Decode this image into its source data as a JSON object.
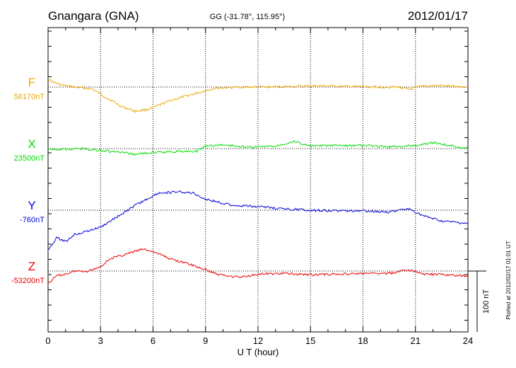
{
  "header": {
    "station": "Gnangara (GNA)",
    "coords": "GG (-31.78°, 115.95°)",
    "date": "2012/01/17"
  },
  "footer_note": "Plotted at 2012/02/17 01:01  UT",
  "scale_label": "100 nT",
  "chart_data": {
    "type": "line",
    "xlabel": "U T (hour)",
    "xlim": [
      0,
      24
    ],
    "xticks": [
      "0",
      "3",
      "6",
      "9",
      "12",
      "15",
      "18",
      "21",
      "24"
    ],
    "scale_nT": 100,
    "grid": true,
    "series": [
      {
        "name": "F",
        "baseline_label": "58170nT",
        "color": "#f0a800",
        "x": [
          0,
          0.3,
          0.8,
          1.5,
          2.5,
          3.2,
          4.2,
          5,
          5.8,
          7,
          8.5,
          9.5,
          11,
          12.5,
          14,
          15.5,
          17,
          18.5,
          20,
          20.6,
          21.5,
          22.5,
          24
        ],
        "y": [
          13,
          8,
          3,
          0,
          -3,
          -15,
          -32,
          -40,
          -36,
          -22,
          -10,
          -2,
          0,
          0,
          1,
          2,
          1,
          0,
          0,
          -4,
          2,
          2,
          0
        ]
      },
      {
        "name": "X",
        "baseline_label": "23500nT",
        "color": "#00dd00",
        "x": [
          0,
          1,
          2,
          3,
          4,
          4.9,
          5.8,
          7,
          8.5,
          9,
          10,
          11.5,
          13,
          14,
          15,
          16.5,
          18,
          19.5,
          21,
          22,
          23,
          24
        ],
        "y": [
          -1,
          -1,
          0,
          -3,
          -6,
          -9,
          -7,
          -5,
          -4,
          4,
          6,
          2,
          4,
          12,
          4,
          5,
          5,
          3,
          5,
          10,
          5,
          0
        ]
      },
      {
        "name": "Y",
        "baseline_label": "-760nT",
        "color": "#0000dd",
        "x": [
          0,
          0.5,
          1,
          1.5,
          2.2,
          3,
          4,
          5,
          6.3,
          7.5,
          8.3,
          9,
          10.5,
          12,
          13.5,
          15,
          16.5,
          18,
          19.5,
          20.6,
          21.5,
          22.5,
          24
        ],
        "y": [
          -65,
          -45,
          -52,
          -40,
          -35,
          -28,
          -10,
          8,
          28,
          30,
          28,
          18,
          8,
          6,
          2,
          0,
          -1,
          -1,
          -3,
          2,
          -10,
          -18,
          -22
        ]
      },
      {
        "name": "Z",
        "baseline_label": "-53200nT",
        "color": "#ee0000",
        "x": [
          0,
          0.5,
          1,
          1.5,
          2.3,
          3,
          3.5,
          4.5,
          5.4,
          6,
          7,
          8,
          9,
          9.8,
          11,
          12,
          13.5,
          15,
          16.5,
          18,
          19.5,
          20.6,
          21.5,
          22.5,
          24
        ],
        "y": [
          -20,
          -8,
          -5,
          0,
          0,
          7,
          20,
          28,
          36,
          32,
          20,
          12,
          2,
          -6,
          -10,
          -5,
          -4,
          -6,
          -5,
          -4,
          -4,
          2,
          -5,
          -6,
          -8
        ]
      }
    ]
  }
}
